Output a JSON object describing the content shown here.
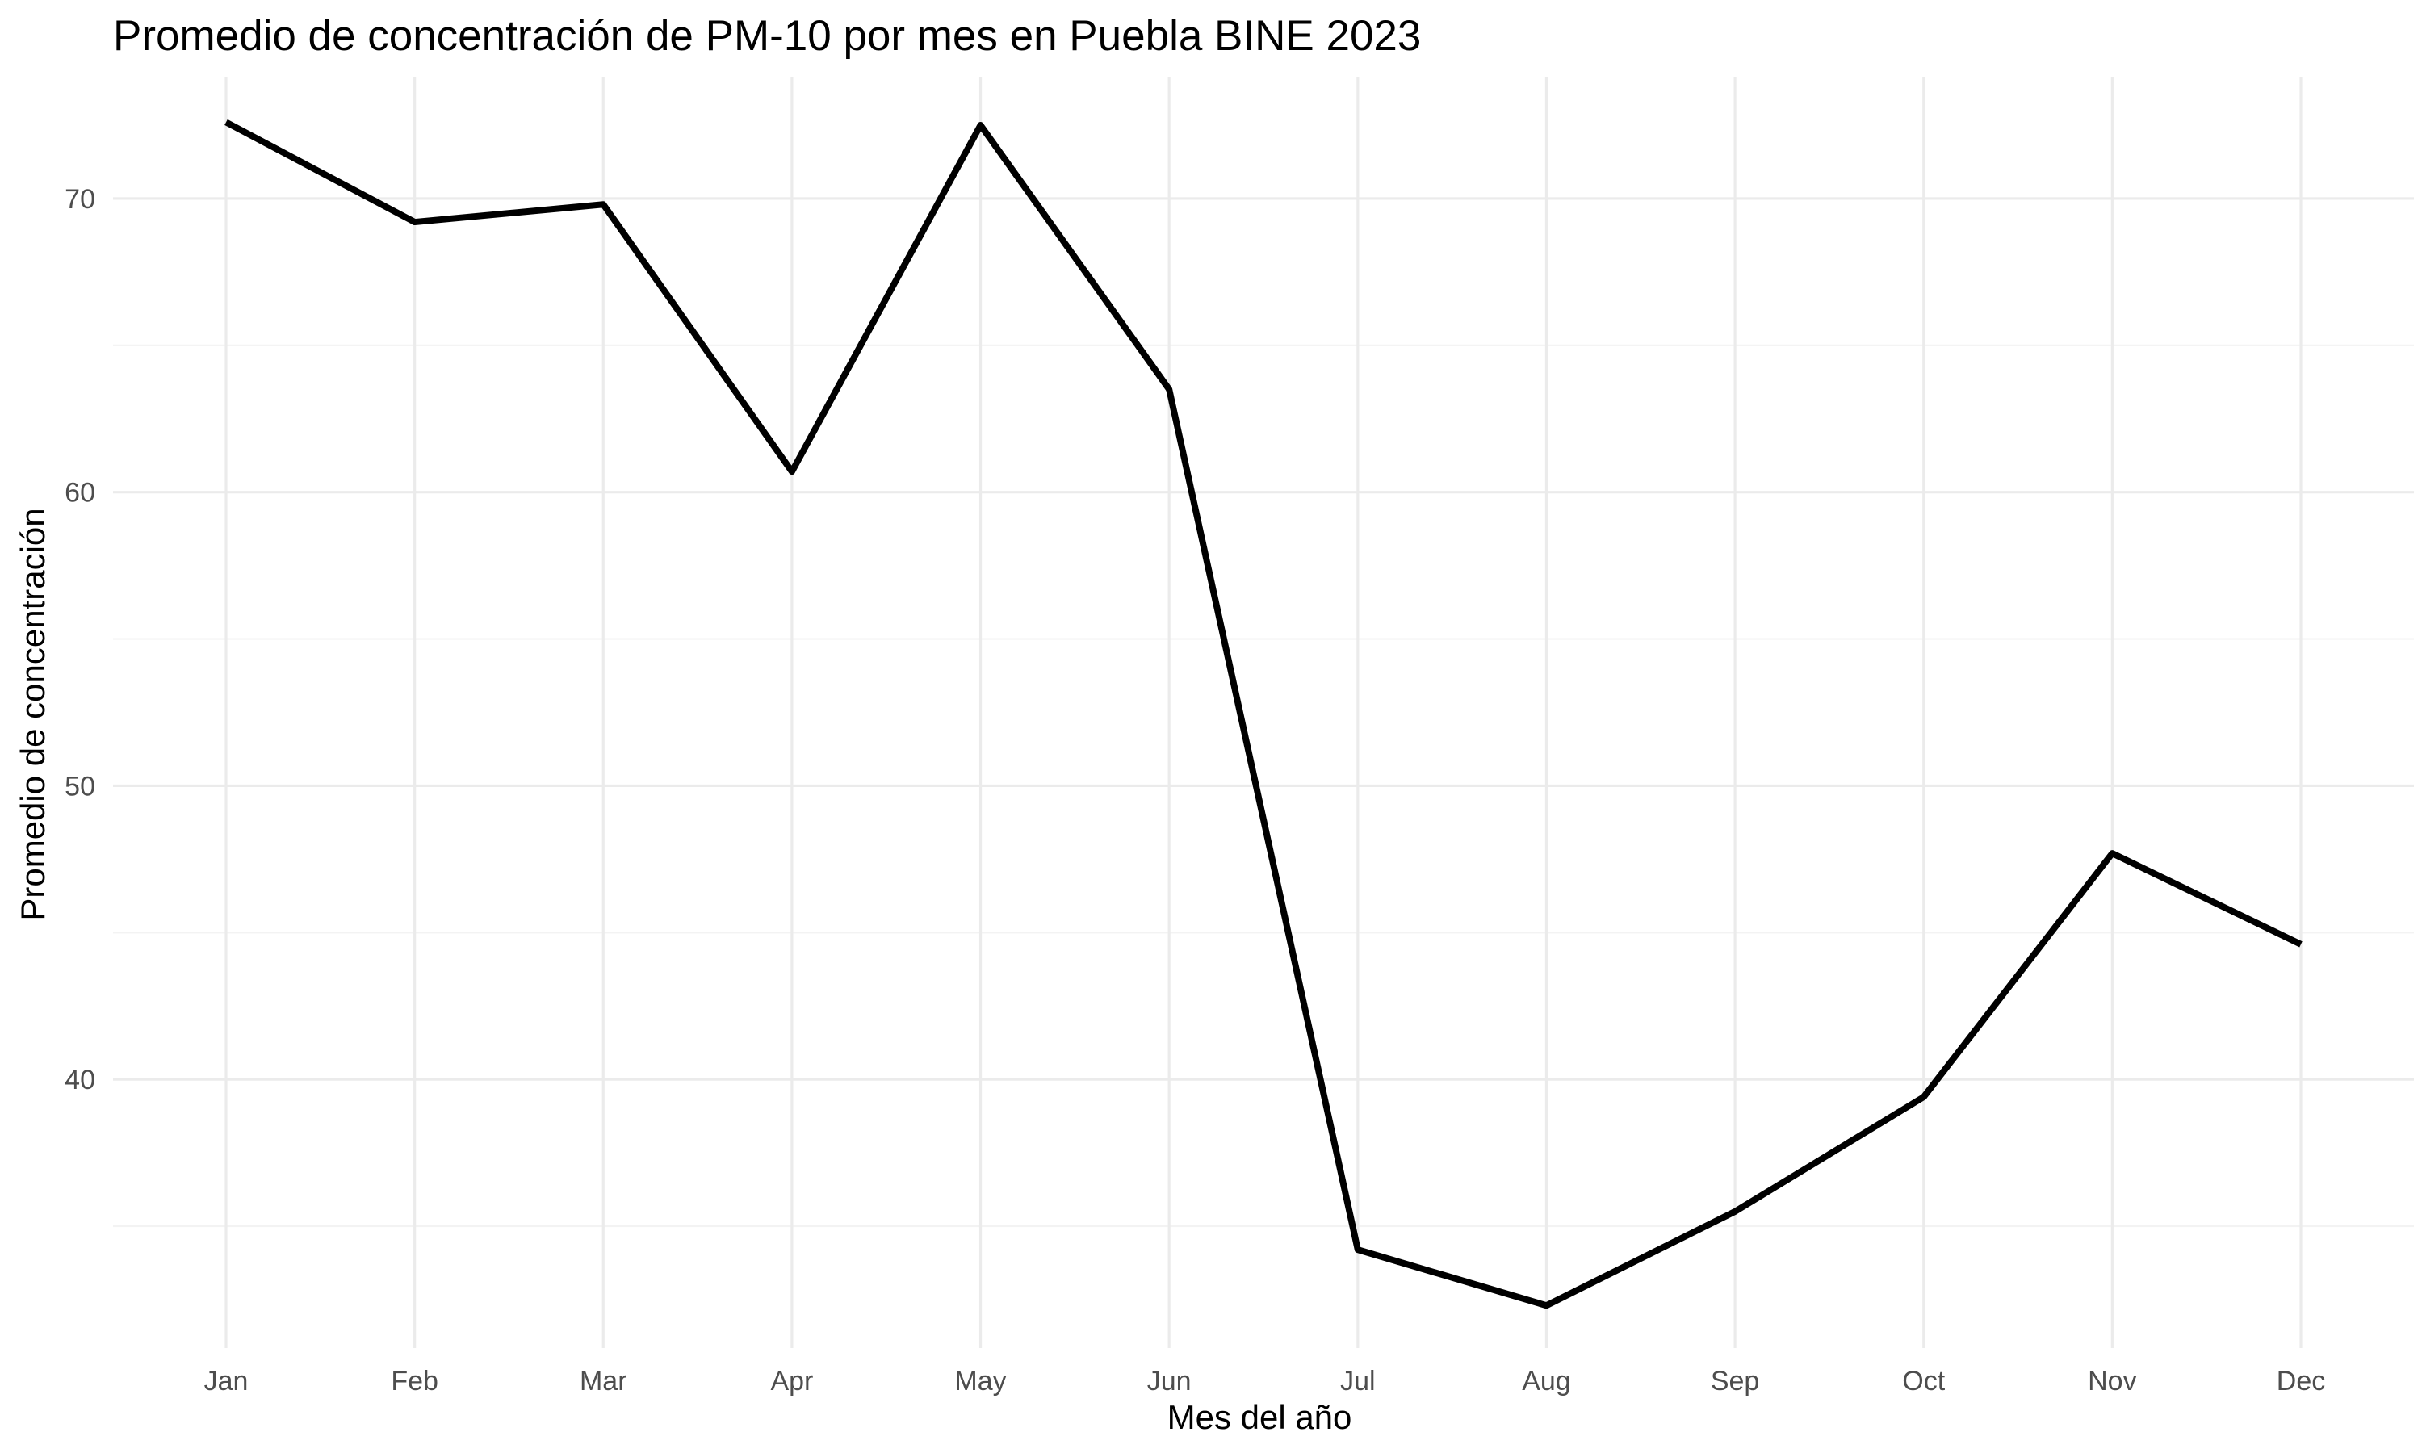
{
  "chart_data": {
    "type": "line",
    "title": "Promedio de concentración de PM-10 por mes en Puebla BINE 2023",
    "xlabel": "Mes del año",
    "ylabel": "Promedio de concentración",
    "categories": [
      "Jan",
      "Feb",
      "Mar",
      "Apr",
      "May",
      "Jun",
      "Jul",
      "Aug",
      "Sep",
      "Oct",
      "Nov",
      "Dec"
    ],
    "series": [
      {
        "name": "PM-10",
        "values": [
          72.6,
          69.2,
          69.8,
          60.7,
          72.5,
          63.5,
          34.2,
          32.3,
          35.5,
          39.4,
          47.7,
          44.6
        ]
      }
    ],
    "ylim": [
      30.85,
      74.15
    ],
    "yticks": [
      40,
      50,
      60,
      70
    ],
    "yticks_minor": [
      35,
      45,
      55,
      65
    ],
    "grid": true,
    "line_color": "#000000"
  }
}
